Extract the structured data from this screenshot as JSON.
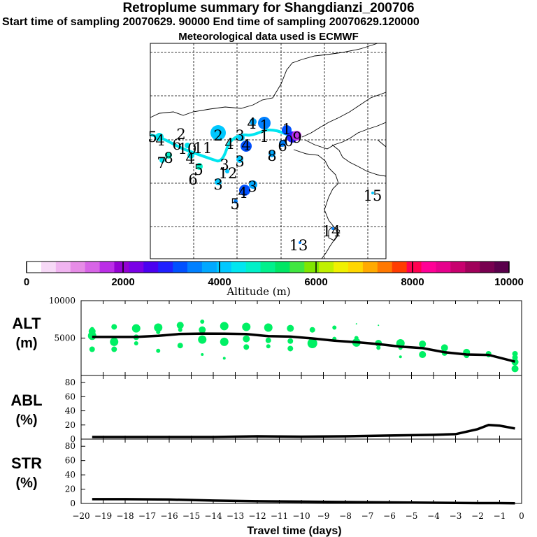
{
  "header": {
    "title": "Retroplume summary for Shangdianzi_200706",
    "sampling": "Start time of sampling 20070629. 90000     End time of sampling 20070629.120000",
    "met": "Meteorological data used is ECMWF"
  },
  "colorbar": {
    "title": "Altitude (m)",
    "min": 0,
    "max": 10000,
    "ticks": [
      "0",
      "2000",
      "4000",
      "6000",
      "8000",
      "10000"
    ],
    "colors": [
      "#ffffff",
      "#f7d9f7",
      "#f0b4f0",
      "#e68ce6",
      "#d764e6",
      "#bb2ee6",
      "#9400d3",
      "#7a00e6",
      "#4b00f0",
      "#2020ff",
      "#0050ff",
      "#0080ff",
      "#00a8ff",
      "#00c8ff",
      "#00e6f0",
      "#00f0c8",
      "#00f08c",
      "#00e664",
      "#40e640",
      "#80e600",
      "#c0f000",
      "#f0f000",
      "#ffd700",
      "#ffaa00",
      "#ff7800",
      "#ff3c00",
      "#ff0050",
      "#ff0096",
      "#e6008c",
      "#c8006e",
      "#a0005a",
      "#780050",
      "#5a004b"
    ]
  },
  "map": {
    "labels": [
      {
        "t": "5",
        "x": 218,
        "y": 195
      },
      {
        "t": "4",
        "x": 229,
        "y": 200
      },
      {
        "t": "2",
        "x": 259,
        "y": 191
      },
      {
        "t": "8",
        "x": 241,
        "y": 225
      },
      {
        "t": "7",
        "x": 231,
        "y": 232
      },
      {
        "t": "6",
        "x": 253,
        "y": 206
      },
      {
        "t": "10",
        "x": 268,
        "y": 212
      },
      {
        "t": "11",
        "x": 290,
        "y": 211
      },
      {
        "t": "4",
        "x": 272,
        "y": 226
      },
      {
        "t": "5",
        "x": 284,
        "y": 242
      },
      {
        "t": "6",
        "x": 276,
        "y": 256
      },
      {
        "t": "3",
        "x": 312,
        "y": 263
      },
      {
        "t": "3",
        "x": 321,
        "y": 235
      },
      {
        "t": "12",
        "x": 326,
        "y": 247
      },
      {
        "t": "2",
        "x": 312,
        "y": 193
      },
      {
        "t": "3",
        "x": 343,
        "y": 193
      },
      {
        "t": "4",
        "x": 352,
        "y": 207
      },
      {
        "t": "4",
        "x": 328,
        "y": 205
      },
      {
        "t": "3",
        "x": 343,
        "y": 230
      },
      {
        "t": "4",
        "x": 360,
        "y": 176
      },
      {
        "t": "1",
        "x": 378,
        "y": 179
      },
      {
        "t": "1",
        "x": 378,
        "y": 195
      },
      {
        "t": "1",
        "x": 410,
        "y": 184
      },
      {
        "t": "6",
        "x": 404,
        "y": 208
      },
      {
        "t": "0",
        "x": 413,
        "y": 201
      },
      {
        "t": "9",
        "x": 425,
        "y": 196
      },
      {
        "t": "8",
        "x": 389,
        "y": 222
      },
      {
        "t": "3",
        "x": 361,
        "y": 266
      },
      {
        "t": "4",
        "x": 347,
        "y": 275
      },
      {
        "t": "5",
        "x": 336,
        "y": 291
      },
      {
        "t": "15",
        "x": 533,
        "y": 279
      },
      {
        "t": "14",
        "x": 474,
        "y": 330
      },
      {
        "t": "13",
        "x": 427,
        "y": 350
      }
    ]
  },
  "chart_data": [
    {
      "name": "ALT",
      "type": "scatter",
      "ylabel": "ALT (m)",
      "ylim": [
        0,
        10000
      ],
      "yticks": [
        5000,
        10000
      ],
      "xlim": [
        -20,
        0
      ],
      "line": {
        "x": [
          -19.5,
          -18.5,
          -17.5,
          -16.5,
          -15.5,
          -14.5,
          -13.5,
          -12.5,
          -11.5,
          -10.5,
          -9.5,
          -8.5,
          -7.5,
          -6.5,
          -5.5,
          -4.5,
          -3.5,
          -2.5,
          -1.5,
          -0.3
        ],
        "y": [
          5150,
          5150,
          5150,
          5300,
          5550,
          5600,
          5580,
          5530,
          5250,
          5200,
          4950,
          4650,
          4450,
          4200,
          3850,
          3650,
          3100,
          2800,
          2750,
          1850
        ]
      },
      "points": [
        {
          "x": -19.5,
          "y": 5900,
          "r": 5
        },
        {
          "x": -19.5,
          "y": 5300,
          "r": 6
        },
        {
          "x": -19.5,
          "y": 3500,
          "r": 4
        },
        {
          "x": -19.5,
          "y": 6200,
          "r": 3
        },
        {
          "x": -18.5,
          "y": 6500,
          "r": 4
        },
        {
          "x": -18.5,
          "y": 4500,
          "r": 6
        },
        {
          "x": -18.5,
          "y": 3500,
          "r": 4
        },
        {
          "x": -17.5,
          "y": 6300,
          "r": 6
        },
        {
          "x": -17.5,
          "y": 5100,
          "r": 4
        },
        {
          "x": -17.5,
          "y": 4300,
          "r": 3
        },
        {
          "x": -16.5,
          "y": 6400,
          "r": 6
        },
        {
          "x": -16.5,
          "y": 5800,
          "r": 3
        },
        {
          "x": -16.5,
          "y": 3300,
          "r": 3
        },
        {
          "x": -15.5,
          "y": 6700,
          "r": 5
        },
        {
          "x": -15.5,
          "y": 6100,
          "r": 3
        },
        {
          "x": -15.5,
          "y": 4000,
          "r": 4
        },
        {
          "x": -14.5,
          "y": 7200,
          "r": 3
        },
        {
          "x": -14.5,
          "y": 6100,
          "r": 5
        },
        {
          "x": -14.5,
          "y": 4800,
          "r": 6
        },
        {
          "x": -14.5,
          "y": 2800,
          "r": 2
        },
        {
          "x": -13.5,
          "y": 6600,
          "r": 6
        },
        {
          "x": -13.5,
          "y": 4500,
          "r": 6
        },
        {
          "x": -13.5,
          "y": 2300,
          "r": 2
        },
        {
          "x": -12.5,
          "y": 6500,
          "r": 6
        },
        {
          "x": -12.5,
          "y": 4900,
          "r": 5
        },
        {
          "x": -12.5,
          "y": 3800,
          "r": 4
        },
        {
          "x": -11.5,
          "y": 6400,
          "r": 6
        },
        {
          "x": -11.5,
          "y": 4700,
          "r": 4
        },
        {
          "x": -11.5,
          "y": 3900,
          "r": 3
        },
        {
          "x": -10.5,
          "y": 6300,
          "r": 5
        },
        {
          "x": -10.5,
          "y": 4600,
          "r": 4
        },
        {
          "x": -10.5,
          "y": 3600,
          "r": 4
        },
        {
          "x": -9.5,
          "y": 6100,
          "r": 4
        },
        {
          "x": -9.5,
          "y": 4300,
          "r": 7
        },
        {
          "x": -8.5,
          "y": 6400,
          "r": 3
        },
        {
          "x": -8.5,
          "y": 4900,
          "r": 3
        },
        {
          "x": -7.5,
          "y": 6900,
          "r": 1
        },
        {
          "x": -7.5,
          "y": 4400,
          "r": 6
        },
        {
          "x": -7.5,
          "y": 5000,
          "r": 3
        },
        {
          "x": -6.5,
          "y": 6700,
          "r": 1
        },
        {
          "x": -6.5,
          "y": 4300,
          "r": 5
        },
        {
          "x": -6.5,
          "y": 3700,
          "r": 3
        },
        {
          "x": -5.5,
          "y": 4300,
          "r": 6
        },
        {
          "x": -5.5,
          "y": 3700,
          "r": 3
        },
        {
          "x": -5.5,
          "y": 2500,
          "r": 2
        },
        {
          "x": -4.5,
          "y": 4200,
          "r": 5
        },
        {
          "x": -4.5,
          "y": 2800,
          "r": 5
        },
        {
          "x": -3.5,
          "y": 3700,
          "r": 5
        },
        {
          "x": -3.5,
          "y": 3000,
          "r": 4
        },
        {
          "x": -2.5,
          "y": 3100,
          "r": 5
        },
        {
          "x": -2.5,
          "y": 2700,
          "r": 4
        },
        {
          "x": -1.5,
          "y": 2900,
          "r": 4
        },
        {
          "x": -1.5,
          "y": 2700,
          "r": 3
        },
        {
          "x": -0.3,
          "y": 2900,
          "r": 4
        },
        {
          "x": -0.3,
          "y": 2400,
          "r": 4
        },
        {
          "x": -0.3,
          "y": 1800,
          "r": 5
        },
        {
          "x": -0.3,
          "y": 900,
          "r": 5
        }
      ]
    },
    {
      "name": "ABL",
      "type": "line",
      "ylabel": "ABL (%)",
      "ylim": [
        0,
        90
      ],
      "yticks": [
        0,
        20,
        40,
        60,
        80
      ],
      "xlim": [
        -20,
        0
      ],
      "x": [
        -19.5,
        -18,
        -16,
        -14,
        -12,
        -10,
        -8,
        -6,
        -4,
        -3,
        -2,
        -1.5,
        -1,
        -0.3
      ],
      "y": [
        3,
        3,
        3,
        3,
        4,
        3.5,
        4,
        5,
        6,
        7,
        14,
        20,
        19,
        15
      ]
    },
    {
      "name": "STR",
      "type": "line",
      "ylabel": "STR (%)",
      "ylim": [
        0,
        90
      ],
      "yticks": [
        0,
        20,
        40,
        60,
        80
      ],
      "xlim": [
        -20,
        0
      ],
      "x": [
        -19.5,
        -18,
        -16,
        -14,
        -12,
        -10,
        -8,
        -6,
        -4,
        -2,
        -1,
        -0.3
      ],
      "y": [
        6,
        6,
        5.5,
        4,
        3,
        2.5,
        2,
        1.5,
        1,
        0.5,
        0.5,
        0.3
      ],
      "xticks": [
        "-20",
        "-19",
        "-18",
        "-17",
        "-16",
        "-15",
        "-14",
        "-13",
        "-12",
        "-11",
        "-10",
        "-9",
        "-8",
        "-7",
        "-6",
        "-5",
        "-4",
        "-3",
        "-2",
        "-1",
        "0"
      ],
      "xlabel": "Travel time (days)"
    }
  ]
}
